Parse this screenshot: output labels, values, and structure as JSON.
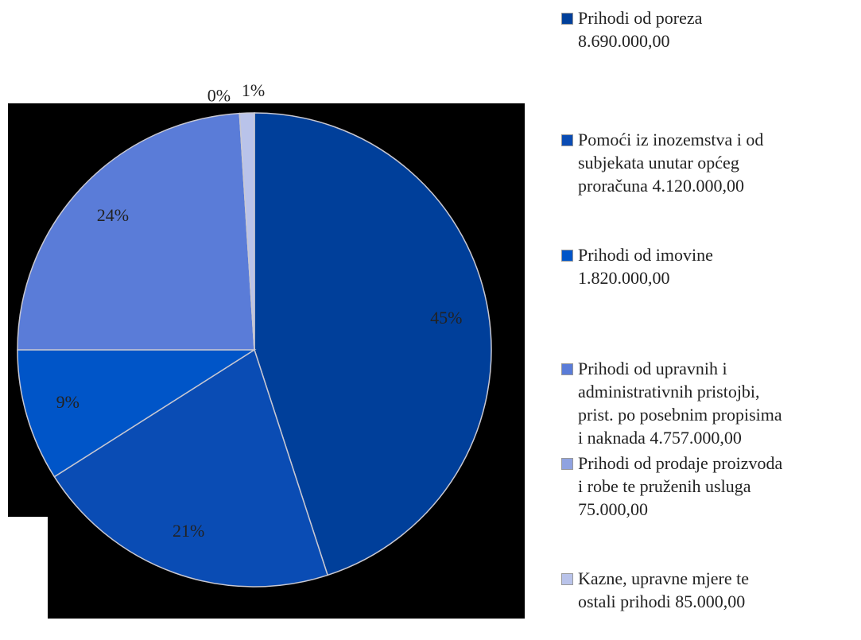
{
  "chart_data": {
    "type": "pie",
    "series": [
      {
        "name": "Prihodi od poreza\n8.690.000,00",
        "color": "#003f9a",
        "values": [
          45
        ]
      },
      {
        "name": "Pomoći iz inozemstva i od\nsubjekata unutar općeg\nproračuna  4.120.000,00",
        "color": "#0a4cb4",
        "values": [
          21
        ]
      },
      {
        "name": "Prihodi od imovine\n1.820.000,00",
        "color": "#0055c8",
        "values": [
          9
        ]
      },
      {
        "name": "Prihodi od upravnih i\nadministrativnih pristojbi,\nprist. po posebnim propisima\ni naknada  4.757.000,00",
        "color": "#5a7cd8",
        "values": [
          24
        ]
      },
      {
        "name": "Prihodi od prodaje proizvoda\ni robe te pruženih usluga\n75.000,00",
        "color": "#8fa2e0",
        "values": [
          0
        ]
      },
      {
        "name": "Kazne, upravne mjere te\nostali prihodi  85.000,00",
        "color": "#b9c3ea",
        "values": [
          1
        ]
      }
    ],
    "value_labels": [
      "45%",
      "21%",
      "9%",
      "24%",
      "0%",
      "1%"
    ],
    "legend": "right"
  }
}
